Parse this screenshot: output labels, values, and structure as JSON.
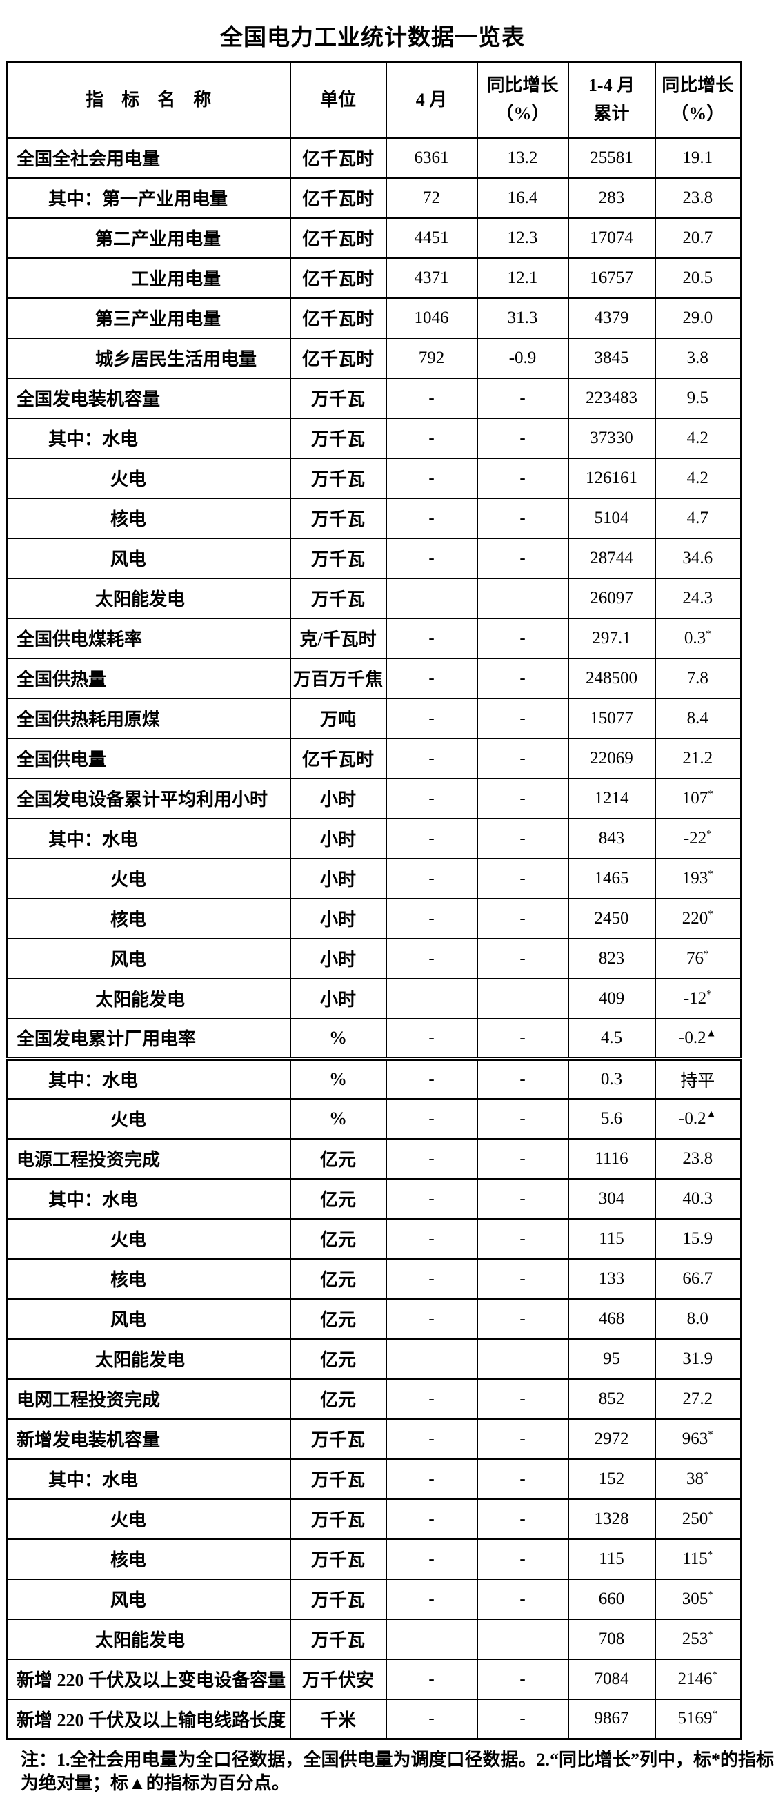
{
  "title": "全国电力工业统计数据一览表",
  "table": {
    "headers": [
      "指　标　名　称",
      "单位",
      "4 月",
      "同比增长\n（%）",
      "1-4 月\n累计",
      "同比增长\n（%）"
    ],
    "rows": [
      {
        "name": "全国全社会用电量",
        "indent": 0,
        "unit": "亿千瓦时",
        "apr": "6361",
        "apr_yoy": "13.2",
        "cum": "25581",
        "cum_yoy": "19.1"
      },
      {
        "name": "其中：第一产业用电量",
        "indent": 1,
        "unit": "亿千瓦时",
        "apr": "72",
        "apr_yoy": "16.4",
        "cum": "283",
        "cum_yoy": "23.8"
      },
      {
        "name": "第二产业用电量",
        "indent": 2,
        "unit": "亿千瓦时",
        "apr": "4451",
        "apr_yoy": "12.3",
        "cum": "17074",
        "cum_yoy": "20.7"
      },
      {
        "name": "工业用电量",
        "indent": 4,
        "unit": "亿千瓦时",
        "apr": "4371",
        "apr_yoy": "12.1",
        "cum": "16757",
        "cum_yoy": "20.5"
      },
      {
        "name": "第三产业用电量",
        "indent": 2,
        "unit": "亿千瓦时",
        "apr": "1046",
        "apr_yoy": "31.3",
        "cum": "4379",
        "cum_yoy": "29.0"
      },
      {
        "name": "城乡居民生活用电量",
        "indent": 2,
        "unit": "亿千瓦时",
        "apr": "792",
        "apr_yoy": "-0.9",
        "cum": "3845",
        "cum_yoy": "3.8"
      },
      {
        "name": "全国发电装机容量",
        "indent": 0,
        "unit": "万千瓦",
        "apr": "-",
        "apr_yoy": "-",
        "cum": "223483",
        "cum_yoy": "9.5"
      },
      {
        "name": "其中：水电",
        "indent": 1,
        "unit": "万千瓦",
        "apr": "-",
        "apr_yoy": "-",
        "cum": "37330",
        "cum_yoy": "4.2"
      },
      {
        "name": "火电",
        "indent": 3,
        "unit": "万千瓦",
        "apr": "-",
        "apr_yoy": "-",
        "cum": "126161",
        "cum_yoy": "4.2"
      },
      {
        "name": "核电",
        "indent": 3,
        "unit": "万千瓦",
        "apr": "-",
        "apr_yoy": "-",
        "cum": "5104",
        "cum_yoy": "4.7"
      },
      {
        "name": "风电",
        "indent": 3,
        "unit": "万千瓦",
        "apr": "-",
        "apr_yoy": "-",
        "cum": "28744",
        "cum_yoy": "34.6"
      },
      {
        "name": "太阳能发电",
        "indent": 2,
        "unit": "万千瓦",
        "apr": "",
        "apr_yoy": "",
        "cum": "26097",
        "cum_yoy": "24.3"
      },
      {
        "name": "全国供电煤耗率",
        "indent": 0,
        "unit": "克/千瓦时",
        "apr": "-",
        "apr_yoy": "-",
        "cum": "297.1",
        "cum_yoy": "0.3*"
      },
      {
        "name": "全国供热量",
        "indent": 0,
        "unit": "万百万千焦",
        "apr": "-",
        "apr_yoy": "-",
        "cum": "248500",
        "cum_yoy": "7.8"
      },
      {
        "name": "全国供热耗用原煤",
        "indent": 0,
        "unit": "万吨",
        "apr": "-",
        "apr_yoy": "-",
        "cum": "15077",
        "cum_yoy": "8.4"
      },
      {
        "name": "全国供电量",
        "indent": 0,
        "unit": "亿千瓦时",
        "apr": "-",
        "apr_yoy": "-",
        "cum": "22069",
        "cum_yoy": "21.2"
      },
      {
        "name": "全国发电设备累计平均利用小时",
        "indent": 0,
        "unit": "小时",
        "apr": "-",
        "apr_yoy": "-",
        "cum": "1214",
        "cum_yoy": "107*"
      },
      {
        "name": "其中：水电",
        "indent": 1,
        "unit": "小时",
        "apr": "-",
        "apr_yoy": "-",
        "cum": "843",
        "cum_yoy": "-22*"
      },
      {
        "name": "火电",
        "indent": 3,
        "unit": "小时",
        "apr": "-",
        "apr_yoy": "-",
        "cum": "1465",
        "cum_yoy": "193*"
      },
      {
        "name": "核电",
        "indent": 3,
        "unit": "小时",
        "apr": "-",
        "apr_yoy": "-",
        "cum": "2450",
        "cum_yoy": "220*"
      },
      {
        "name": "风电",
        "indent": 3,
        "unit": "小时",
        "apr": "-",
        "apr_yoy": "-",
        "cum": "823",
        "cum_yoy": "76*"
      },
      {
        "name": "太阳能发电",
        "indent": 2,
        "unit": "小时",
        "apr": "",
        "apr_yoy": "",
        "cum": "409",
        "cum_yoy": "-12*"
      },
      {
        "name": "全国发电累计厂用电率",
        "indent": 0,
        "unit": "%",
        "apr": "-",
        "apr_yoy": "-",
        "cum": "4.5",
        "cum_yoy": "-0.2▲",
        "thick_bottom": true
      },
      {
        "name": "其中：水电",
        "indent": 1,
        "unit": "%",
        "apr": "-",
        "apr_yoy": "-",
        "cum": "0.3",
        "cum_yoy": "持平"
      },
      {
        "name": "火电",
        "indent": 3,
        "unit": "%",
        "apr": "-",
        "apr_yoy": "-",
        "cum": "5.6",
        "cum_yoy": "-0.2▲"
      },
      {
        "name": "电源工程投资完成",
        "indent": 0,
        "unit": "亿元",
        "apr": "-",
        "apr_yoy": "-",
        "cum": "1116",
        "cum_yoy": "23.8"
      },
      {
        "name": "其中：水电",
        "indent": 1,
        "unit": "亿元",
        "apr": "-",
        "apr_yoy": "-",
        "cum": "304",
        "cum_yoy": "40.3"
      },
      {
        "name": "火电",
        "indent": 3,
        "unit": "亿元",
        "apr": "-",
        "apr_yoy": "-",
        "cum": "115",
        "cum_yoy": "15.9"
      },
      {
        "name": "核电",
        "indent": 3,
        "unit": "亿元",
        "apr": "-",
        "apr_yoy": "-",
        "cum": "133",
        "cum_yoy": "66.7"
      },
      {
        "name": "风电",
        "indent": 3,
        "unit": "亿元",
        "apr": "-",
        "apr_yoy": "-",
        "cum": "468",
        "cum_yoy": "8.0"
      },
      {
        "name": "太阳能发电",
        "indent": 2,
        "unit": "亿元",
        "apr": "",
        "apr_yoy": "",
        "cum": "95",
        "cum_yoy": "31.9"
      },
      {
        "name": "电网工程投资完成",
        "indent": 0,
        "unit": "亿元",
        "apr": "-",
        "apr_yoy": "-",
        "cum": "852",
        "cum_yoy": "27.2"
      },
      {
        "name": "新增发电装机容量",
        "indent": 0,
        "unit": "万千瓦",
        "apr": "-",
        "apr_yoy": "-",
        "cum": "2972",
        "cum_yoy": "963*"
      },
      {
        "name": "其中：水电",
        "indent": 1,
        "unit": "万千瓦",
        "apr": "-",
        "apr_yoy": "-",
        "cum": "152",
        "cum_yoy": "38*"
      },
      {
        "name": "火电",
        "indent": 3,
        "unit": "万千瓦",
        "apr": "-",
        "apr_yoy": "-",
        "cum": "1328",
        "cum_yoy": "250*"
      },
      {
        "name": "核电",
        "indent": 3,
        "unit": "万千瓦",
        "apr": "-",
        "apr_yoy": "-",
        "cum": "115",
        "cum_yoy": "115*"
      },
      {
        "name": "风电",
        "indent": 3,
        "unit": "万千瓦",
        "apr": "-",
        "apr_yoy": "-",
        "cum": "660",
        "cum_yoy": "305*"
      },
      {
        "name": "太阳能发电",
        "indent": 2,
        "unit": "万千瓦",
        "apr": "",
        "apr_yoy": "",
        "cum": "708",
        "cum_yoy": "253*"
      },
      {
        "name": "新增 220 千伏及以上变电设备容量",
        "indent": 0,
        "unit": "万千伏安",
        "apr": "-",
        "apr_yoy": "-",
        "cum": "7084",
        "cum_yoy": "2146*"
      },
      {
        "name": "新增 220 千伏及以上输电线路长度",
        "indent": 0,
        "unit": "千米",
        "apr": "-",
        "apr_yoy": "-",
        "cum": "9867",
        "cum_yoy": "5169*"
      }
    ]
  },
  "notes": [
    "注：1.全社会用电量为全口径数据，全国供电量为调度口径数据。2.“同比增长”列中，标*的指标",
    "为绝对量；标▲的指标为百分点。"
  ]
}
